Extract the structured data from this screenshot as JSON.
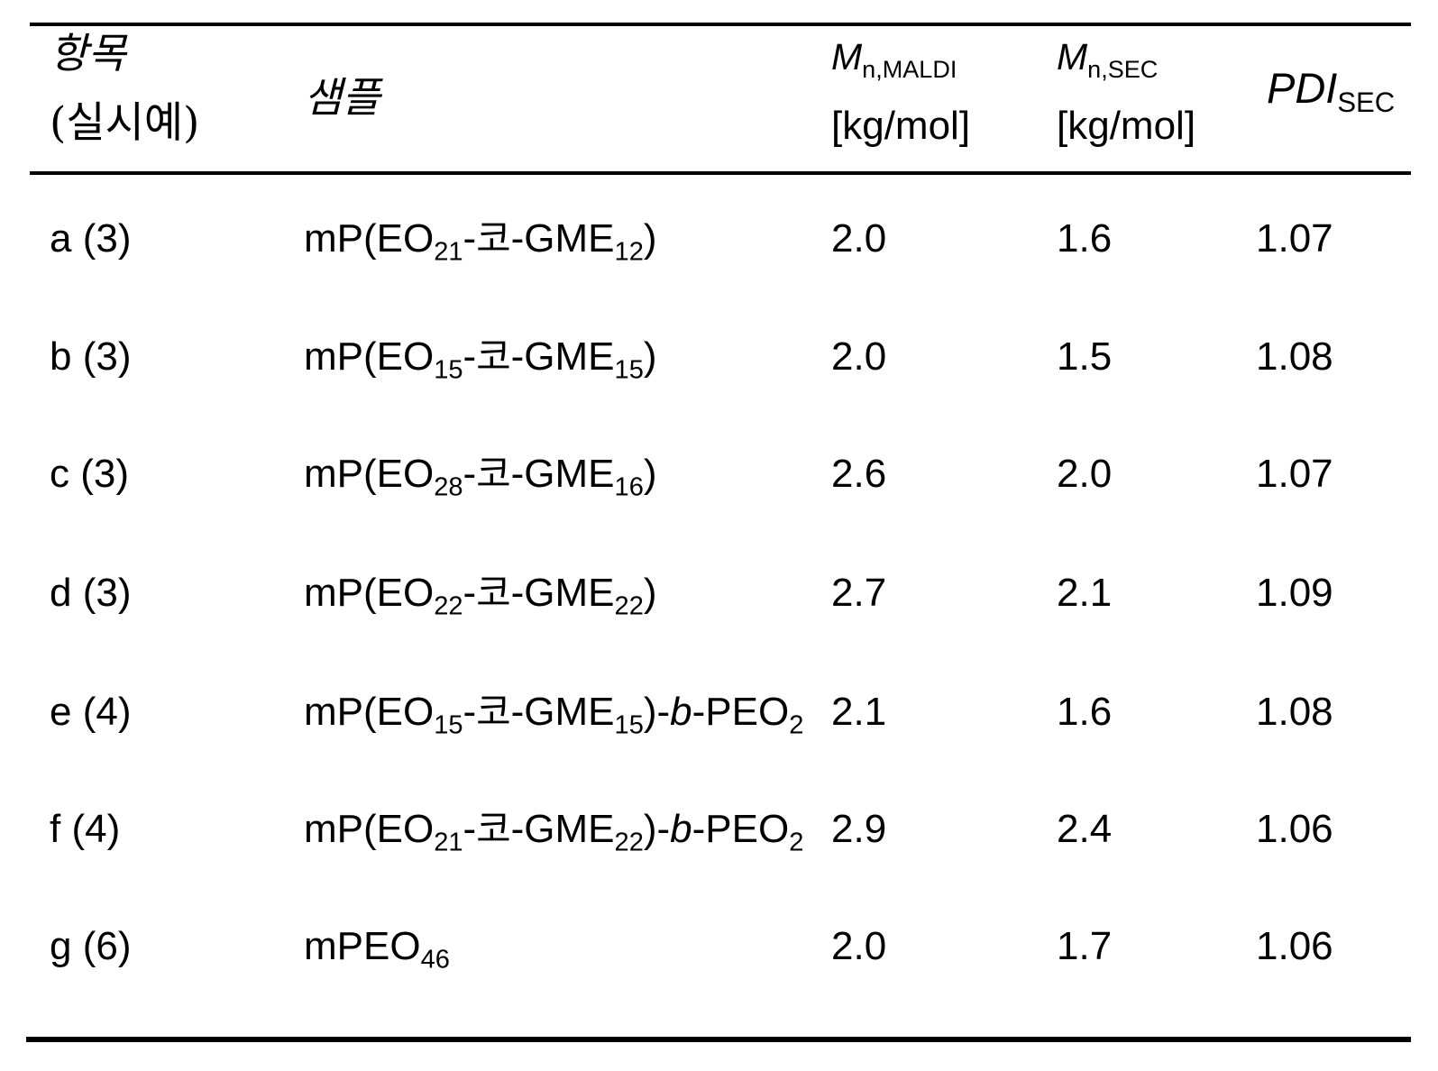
{
  "table": {
    "header": {
      "item_line1": "항목",
      "item_line2": "(실시예)",
      "sample": "샘플",
      "unit": "[kg/mol]",
      "mn_maldi": [
        {
          "t": "M",
          "i": true
        },
        {
          "t": "n,MALDI",
          "sub": true
        }
      ],
      "mn_sec": [
        {
          "t": "M",
          "i": true
        },
        {
          "t": "n,SEC",
          "sub": true
        }
      ],
      "pdi": [
        {
          "t": "PDI",
          "i": true
        },
        {
          "t": "SEC",
          "sub": true
        }
      ]
    },
    "rows": [
      {
        "item": "a (3)",
        "sample": [
          {
            "t": "mP(EO"
          },
          {
            "t": "21",
            "sub": true
          },
          {
            "t": "-"
          },
          {
            "t": "코",
            "k": true
          },
          {
            "t": "-GME"
          },
          {
            "t": "12",
            "sub": true
          },
          {
            "t": ")"
          }
        ],
        "mn_maldi": "2.0",
        "mn_sec": "1.6",
        "pdi": "1.07"
      },
      {
        "item": "b (3)",
        "sample": [
          {
            "t": "mP(EO"
          },
          {
            "t": "15",
            "sub": true
          },
          {
            "t": "-"
          },
          {
            "t": "코",
            "k": true
          },
          {
            "t": "-GME"
          },
          {
            "t": "15",
            "sub": true
          },
          {
            "t": ")"
          }
        ],
        "mn_maldi": "2.0",
        "mn_sec": "1.5",
        "pdi": "1.08"
      },
      {
        "item": "c (3)",
        "sample": [
          {
            "t": "mP(EO"
          },
          {
            "t": "28",
            "sub": true
          },
          {
            "t": "-"
          },
          {
            "t": "코",
            "k": true
          },
          {
            "t": "-GME"
          },
          {
            "t": "16",
            "sub": true
          },
          {
            "t": ")"
          }
        ],
        "mn_maldi": "2.6",
        "mn_sec": "2.0",
        "pdi": "1.07"
      },
      {
        "item": "d (3)",
        "sample": [
          {
            "t": "mP(EO"
          },
          {
            "t": "22",
            "sub": true
          },
          {
            "t": "-"
          },
          {
            "t": "코",
            "k": true
          },
          {
            "t": "-GME"
          },
          {
            "t": "22",
            "sub": true
          },
          {
            "t": ")"
          }
        ],
        "mn_maldi": "2.7",
        "mn_sec": "2.1",
        "pdi": "1.09"
      },
      {
        "item": "e (4)",
        "sample": [
          {
            "t": "mP(EO"
          },
          {
            "t": "15",
            "sub": true
          },
          {
            "t": "-"
          },
          {
            "t": "코",
            "k": true
          },
          {
            "t": "-GME"
          },
          {
            "t": "15",
            "sub": true
          },
          {
            "t": ")-"
          },
          {
            "t": "b",
            "i": true
          },
          {
            "t": "-PEO"
          },
          {
            "t": "2",
            "sub": true
          }
        ],
        "mn_maldi": "2.1",
        "mn_sec": "1.6",
        "pdi": "1.08"
      },
      {
        "item": "f (4)",
        "sample": [
          {
            "t": "mP(EO"
          },
          {
            "t": "21",
            "sub": true
          },
          {
            "t": "-"
          },
          {
            "t": "코",
            "k": true
          },
          {
            "t": "-GME"
          },
          {
            "t": "22",
            "sub": true
          },
          {
            "t": ")-"
          },
          {
            "t": "b",
            "i": true
          },
          {
            "t": "-PEO"
          },
          {
            "t": "2",
            "sub": true
          }
        ],
        "mn_maldi": "2.9",
        "mn_sec": "2.4",
        "pdi": "1.06"
      },
      {
        "item": "g (6)",
        "sample": [
          {
            "t": "mPEO"
          },
          {
            "t": "46",
            "sub": true
          }
        ],
        "mn_maldi": "2.0",
        "mn_sec": "1.7",
        "pdi": "1.06"
      }
    ]
  }
}
